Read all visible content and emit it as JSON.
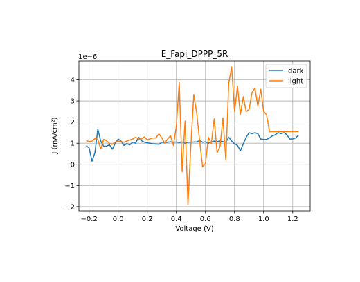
{
  "chart_data": {
    "type": "line",
    "title": "E_Fapi_DPPP_5R",
    "xlabel": "Voltage (V)",
    "ylabel": "J (mA/cm²)",
    "y_offset_text": "1e−6",
    "xlim": [
      -0.27,
      1.32
    ],
    "ylim": [
      -2.2,
      4.9
    ],
    "xticks": [
      -0.2,
      0.0,
      0.2,
      0.4,
      0.6,
      0.8,
      1.0,
      1.2
    ],
    "xtick_labels": [
      "−0.2",
      "0.0",
      "0.2",
      "0.4",
      "0.6",
      "0.8",
      "1.0",
      "1.2"
    ],
    "yticks": [
      -2,
      -1,
      0,
      1,
      2,
      3,
      4
    ],
    "ytick_labels": [
      "−2",
      "−1",
      "0",
      "1",
      "2",
      "3",
      "4"
    ],
    "grid": true,
    "legend_position": "top-right",
    "x": [
      -0.22,
      -0.2,
      -0.18,
      -0.16,
      -0.14,
      -0.12,
      -0.1,
      -0.08,
      -0.06,
      -0.04,
      -0.02,
      0.0,
      0.02,
      0.04,
      0.06,
      0.08,
      0.1,
      0.12,
      0.14,
      0.16,
      0.18,
      0.2,
      0.22,
      0.24,
      0.26,
      0.28,
      0.3,
      0.32,
      0.34,
      0.36,
      0.38,
      0.4,
      0.42,
      0.44,
      0.46,
      0.48,
      0.5,
      0.52,
      0.54,
      0.56,
      0.58,
      0.6,
      0.62,
      0.64,
      0.66,
      0.68,
      0.7,
      0.72,
      0.74,
      0.76,
      0.78,
      0.8,
      0.82,
      0.84,
      0.86,
      0.88,
      0.9,
      0.92,
      0.94,
      0.96,
      0.98,
      1.0,
      1.02,
      1.04,
      1.06,
      1.08,
      1.1,
      1.12,
      1.14,
      1.16,
      1.18,
      1.2,
      1.22,
      1.24
    ],
    "series": [
      {
        "name": "dark",
        "color": "#1f77b4",
        "values": [
          0.88,
          0.78,
          0.15,
          0.55,
          1.67,
          1.1,
          0.86,
          0.86,
          0.93,
          0.72,
          1.0,
          1.2,
          1.1,
          0.9,
          0.98,
          0.92,
          1.05,
          1.0,
          1.28,
          1.12,
          1.05,
          1.02,
          1.0,
          0.97,
          0.96,
          0.95,
          1.05,
          1.03,
          1.05,
          1.07,
          1.05,
          1.06,
          1.03,
          1.06,
          1.0,
          1.05,
          1.05,
          1.06,
          1.06,
          1.13,
          1.05,
          1.07,
          1.0,
          1.05,
          1.1,
          1.08,
          1.1,
          1.08,
          1.05,
          1.28,
          1.1,
          0.97,
          0.9,
          0.64,
          0.97,
          1.28,
          1.5,
          1.45,
          1.5,
          1.45,
          1.2,
          1.18,
          1.18,
          1.25,
          1.35,
          1.4,
          1.5,
          1.45,
          1.5,
          1.4,
          1.2,
          1.2,
          1.25,
          1.38
        ]
      },
      {
        "name": "light",
        "color": "#ff7f0e",
        "values": [
          1.12,
          1.08,
          1.1,
          1.22,
          1.18,
          0.72,
          1.18,
          1.12,
          0.98,
          0.95,
          1.05,
          1.1,
          1.08,
          1.05,
          1.1,
          1.15,
          1.2,
          1.28,
          1.2,
          1.2,
          1.3,
          1.15,
          1.22,
          1.25,
          1.25,
          1.45,
          1.25,
          1.0,
          1.2,
          1.35,
          0.9,
          1.8,
          3.88,
          -0.35,
          2.05,
          -1.9,
          0.9,
          3.3,
          2.4,
          1.1,
          -0.12,
          0.05,
          1.28,
          0.98,
          2.15,
          0.55,
          0.85,
          2.2,
          0.2,
          3.85,
          4.6,
          2.5,
          3.7,
          2.35,
          3.2,
          2.5,
          2.6,
          3.4,
          3.6,
          2.75,
          3.55,
          2.5,
          2.35,
          1.55,
          1.55,
          1.55,
          1.55,
          1.55,
          1.55,
          1.55,
          1.55,
          1.55,
          1.55,
          1.55
        ]
      }
    ]
  }
}
